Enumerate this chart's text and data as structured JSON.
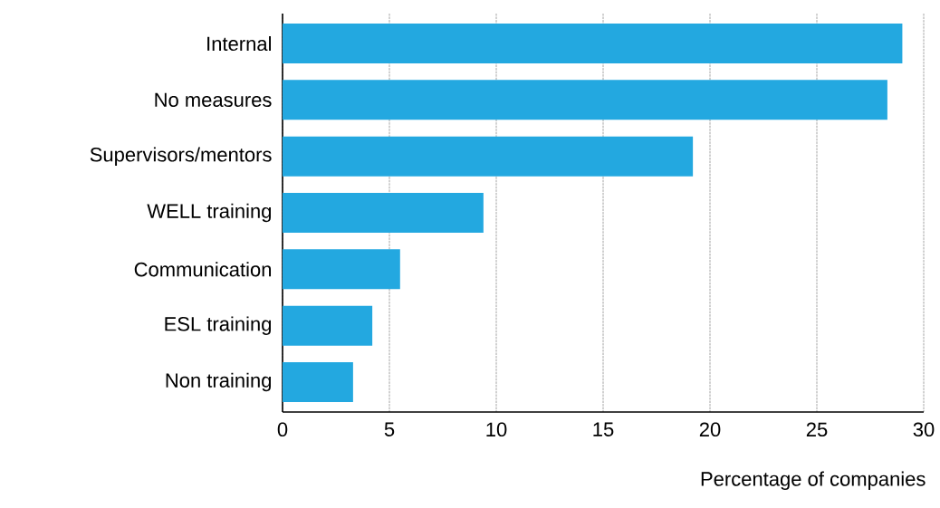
{
  "chart_data": {
    "type": "bar",
    "orientation": "horizontal",
    "xlabel": "Percentage of companies",
    "categories": [
      "Internal",
      "No measures",
      "Supervisors/mentors",
      "WELL training",
      "Communication",
      "ESL training",
      "Non training"
    ],
    "values": [
      29.0,
      28.3,
      19.2,
      9.4,
      5.5,
      4.2,
      3.3
    ],
    "color": "#23a8e0",
    "xlim": [
      0,
      30
    ],
    "xticks": [
      0,
      5,
      10,
      15,
      20,
      25,
      30
    ],
    "grid": "x"
  }
}
